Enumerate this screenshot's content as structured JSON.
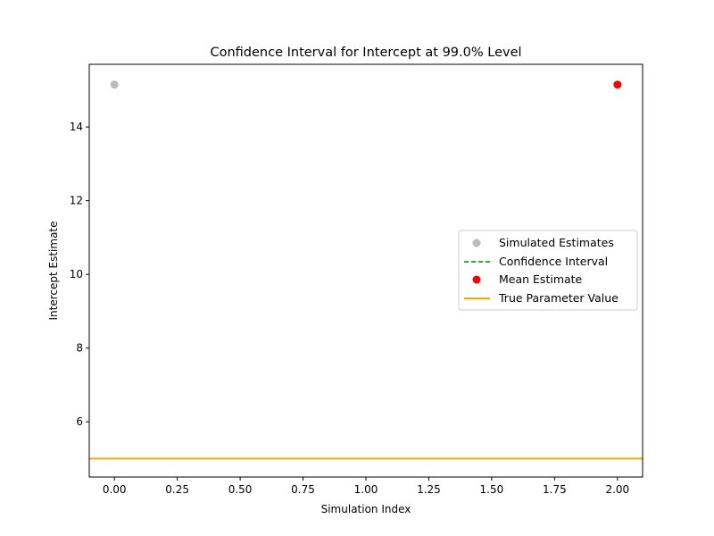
{
  "chart_data": {
    "type": "scatter",
    "title": "Confidence Interval for Intercept at 99.0% Level",
    "xlabel": "Simulation Index",
    "ylabel": "Intercept Estimate",
    "xlim": [
      -0.1,
      2.1
    ],
    "ylim": [
      4.5,
      15.7
    ],
    "xticks": [
      0.0,
      0.25,
      0.5,
      0.75,
      1.0,
      1.25,
      1.5,
      1.75,
      2.0
    ],
    "xtick_labels": [
      "0.00",
      "0.25",
      "0.50",
      "0.75",
      "1.00",
      "1.25",
      "1.50",
      "1.75",
      "2.00"
    ],
    "yticks": [
      6,
      8,
      10,
      12,
      14
    ],
    "ytick_labels": [
      "6",
      "8",
      "10",
      "12",
      "14"
    ],
    "grid": false,
    "legend_position": "center-right",
    "series": [
      {
        "name": "Simulated Estimates",
        "kind": "scatter",
        "color": "#aaaaaa",
        "points": [
          {
            "x": 0.0,
            "y": 15.15
          }
        ]
      },
      {
        "name": "Confidence Interval",
        "kind": "dashed-line",
        "color": "#008000",
        "points": []
      },
      {
        "name": "Mean Estimate",
        "kind": "scatter",
        "color": "#ff0000",
        "points": [
          {
            "x": 2.0,
            "y": 15.15
          }
        ]
      },
      {
        "name": "True Parameter Value",
        "kind": "hline",
        "color": "#ffa500",
        "y": 5.0
      }
    ]
  }
}
